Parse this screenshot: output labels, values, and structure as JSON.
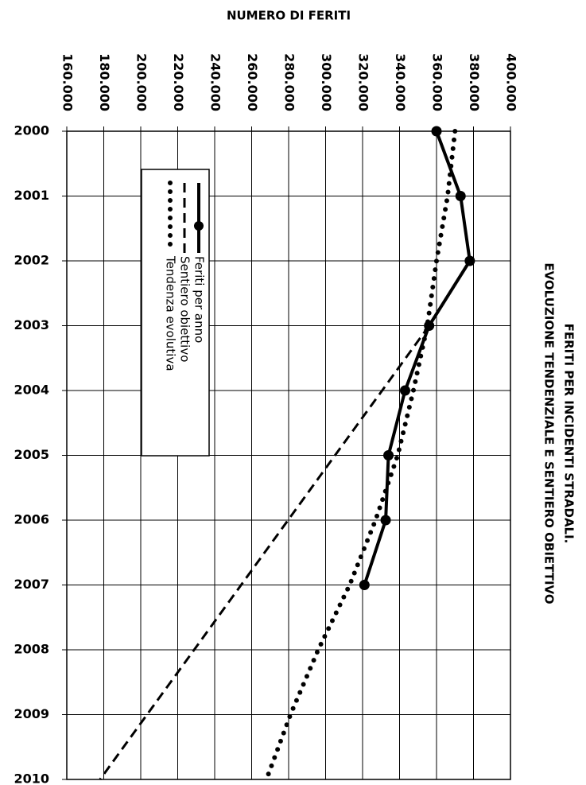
{
  "chart_data": {
    "type": "line",
    "title": "FERITI PER INCIDENTI STRADALI.",
    "subtitle": "EVOLUZIONE TENDENZIALE E SENTIERO OBIETTIVO",
    "y_label": "NUMERO DI FERITI",
    "categories": [
      "2000",
      "2001",
      "2002",
      "2003",
      "2004",
      "2005",
      "2006",
      "2007",
      "2008",
      "2009",
      "2010"
    ],
    "series": [
      {
        "name": "Feriti per anno",
        "color": "#000000",
        "style": "solid-markers",
        "values": [
          360,
          373,
          378,
          356,
          343,
          334,
          332.5,
          321,
          null,
          null,
          null
        ]
      },
      {
        "name": "Sentiero obiettivo",
        "color": "#000000",
        "style": "dashed",
        "values": [
          null,
          null,
          null,
          356,
          330.6,
          305.1,
          279.7,
          254.3,
          228.9,
          203.4,
          178
        ]
      },
      {
        "name": "Tendenza evolutiva",
        "color": "#000000",
        "style": "dotted",
        "values": [
          370,
          366,
          360,
          355,
          347.5,
          339,
          327,
          313,
          296,
          281,
          268
        ]
      }
    ],
    "ylim": [
      160,
      400
    ],
    "yticks": [
      {
        "value": 160,
        "label": "160.000"
      },
      {
        "value": 180,
        "label": "180.000"
      },
      {
        "value": 200,
        "label": "200.000"
      },
      {
        "value": 220,
        "label": "220.000"
      },
      {
        "value": 240,
        "label": "240.000"
      },
      {
        "value": 260,
        "label": "260.000"
      },
      {
        "value": 280,
        "label": "280.000"
      },
      {
        "value": 300,
        "label": "300.000"
      },
      {
        "value": 320,
        "label": "320.000"
      },
      {
        "value": 340,
        "label": "340.000"
      },
      {
        "value": 360,
        "label": "360.000"
      },
      {
        "value": 380,
        "label": "380.000"
      },
      {
        "value": 400,
        "label": "400.000"
      }
    ],
    "grid": true
  }
}
